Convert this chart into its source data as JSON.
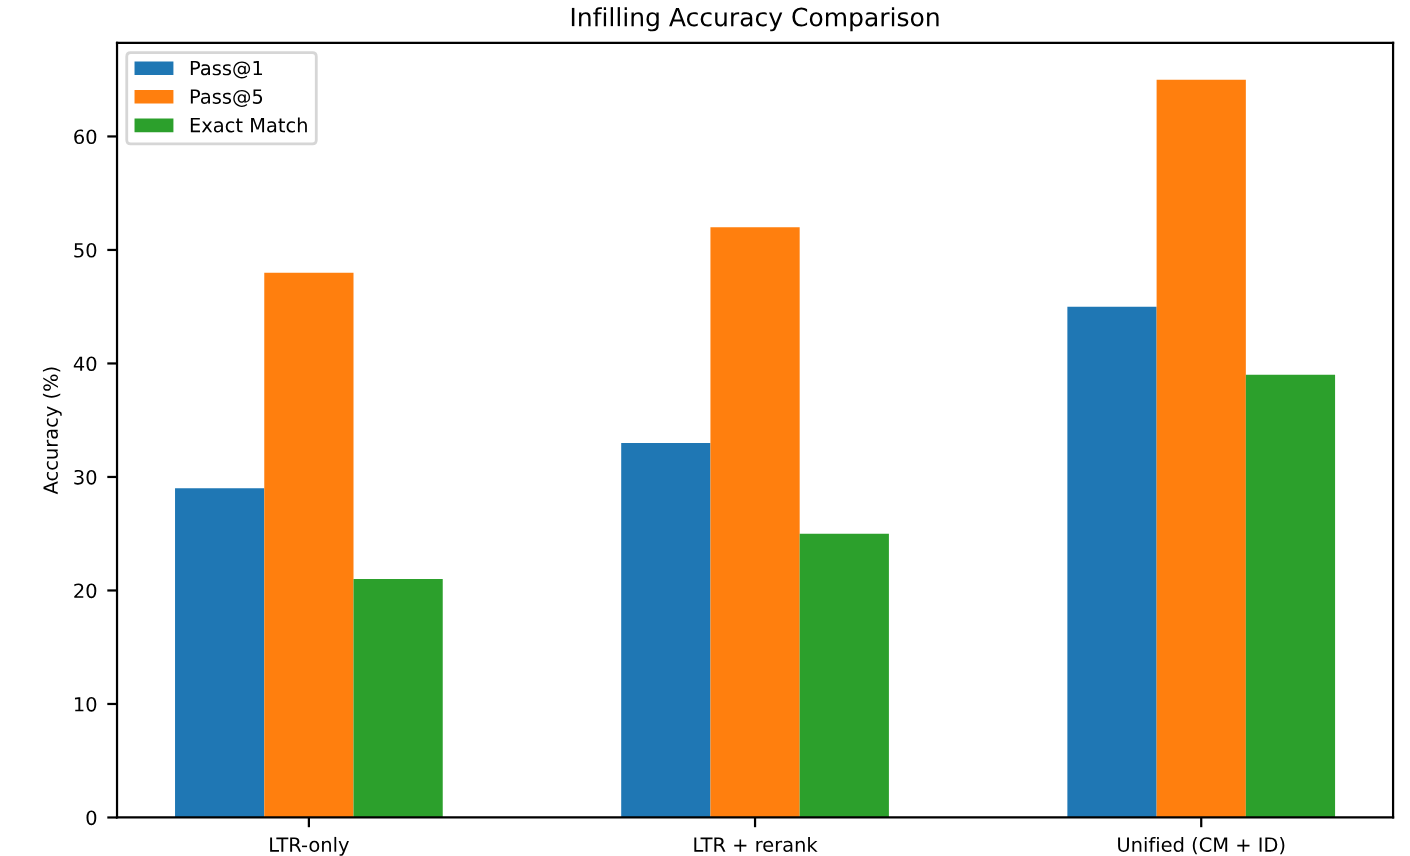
{
  "chart_data": {
    "type": "bar",
    "title": "Infilling Accuracy Comparison",
    "ylabel": "Accuracy (%)",
    "categories": [
      "LTR-only",
      "LTR + rerank",
      "Unified (CM + ID)"
    ],
    "series": [
      {
        "name": "Pass@1",
        "color": "#1f77b4",
        "values": [
          29,
          33,
          45
        ]
      },
      {
        "name": "Pass@5",
        "color": "#ff7f0e",
        "values": [
          48,
          52,
          65
        ]
      },
      {
        "name": "Exact Match",
        "color": "#2ca02c",
        "values": [
          21,
          25,
          39
        ]
      }
    ],
    "ylim": [
      0,
      68.25
    ],
    "yticks": [
      0,
      10,
      20,
      30,
      40,
      50,
      60
    ],
    "legend": "top left",
    "grid": false
  }
}
